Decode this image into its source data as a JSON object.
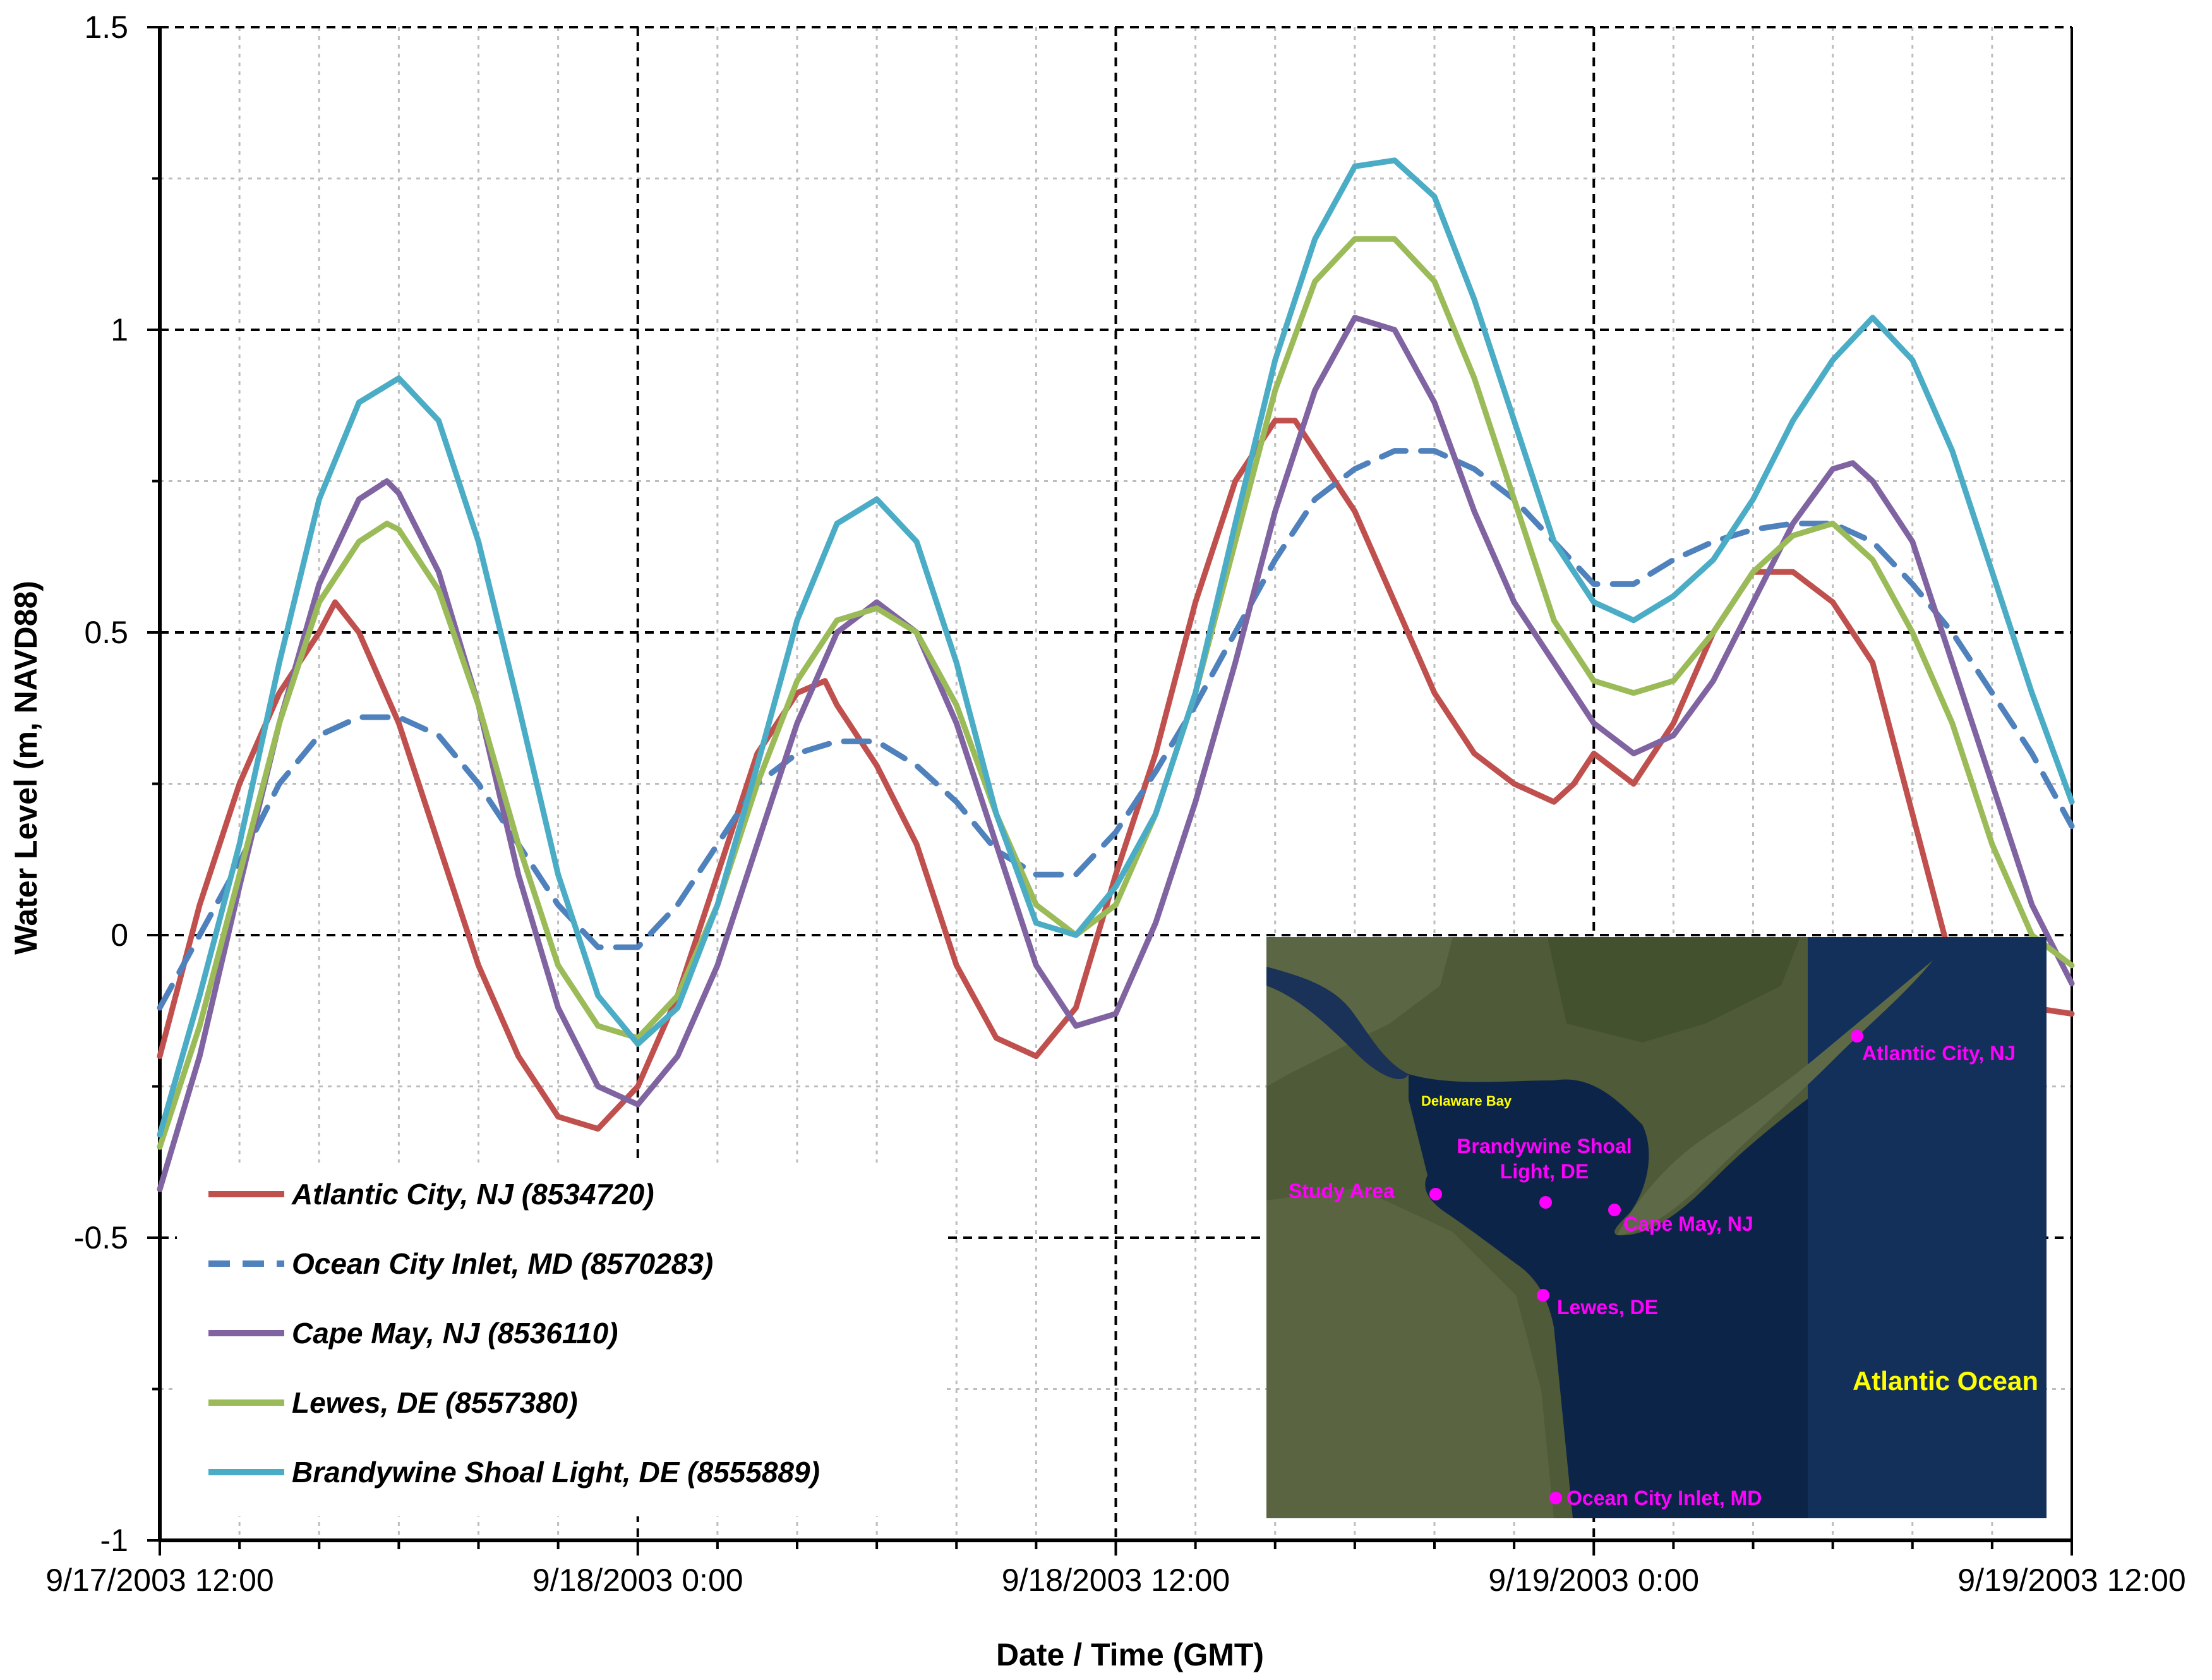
{
  "chart_data": {
    "type": "line",
    "title": "",
    "xlabel": "Date / Time (GMT)",
    "ylabel": "Water Level (m, NAVD88)",
    "x_unit": "hours since 9/17/2003 12:00",
    "xlim": [
      0,
      48
    ],
    "ylim": [
      -1,
      1.5
    ],
    "x_ticks": [
      0,
      12,
      24,
      36,
      48
    ],
    "x_tick_labels": [
      "9/17/2003 12:00",
      "9/18/2003 0:00",
      "9/18/2003 12:00",
      "9/19/2003 0:00",
      "9/19/2003 12:00"
    ],
    "y_ticks": [
      -1,
      -0.5,
      0,
      0.5,
      1,
      1.5
    ],
    "y_tick_labels": [
      "-1",
      "-0.5",
      "0",
      "0.5",
      "1",
      "1.5"
    ],
    "grid": true,
    "legend_position": "bottom-left",
    "series": [
      {
        "name": "Atlantic City, NJ (8534720)",
        "color": "#C0504D",
        "style": "solid",
        "x": [
          0,
          1,
          2,
          3,
          4,
          4.4,
          5,
          6,
          7,
          8,
          9,
          10,
          11,
          12,
          13,
          14,
          15,
          16,
          16.7,
          17,
          18,
          19,
          20,
          21,
          22,
          23,
          24,
          25,
          26,
          27,
          28,
          28.5,
          29,
          30,
          31,
          32,
          33,
          34,
          35,
          35.5,
          36,
          37,
          38,
          39,
          40,
          41,
          42,
          43,
          44,
          44.8,
          45,
          46,
          47,
          48
        ],
        "y": [
          -0.2,
          0.05,
          0.25,
          0.4,
          0.5,
          0.55,
          0.5,
          0.35,
          0.15,
          -0.05,
          -0.2,
          -0.3,
          -0.32,
          -0.25,
          -0.1,
          0.1,
          0.3,
          0.4,
          0.42,
          0.38,
          0.28,
          0.15,
          -0.05,
          -0.17,
          -0.2,
          -0.12,
          0.1,
          0.3,
          0.55,
          0.75,
          0.85,
          0.85,
          0.8,
          0.7,
          0.55,
          0.4,
          0.3,
          0.25,
          0.22,
          0.25,
          0.3,
          0.25,
          0.35,
          0.5,
          0.6,
          0.6,
          0.55,
          0.45,
          0.2,
          0,
          -0.05,
          -0.1,
          -0.12,
          -0.13
        ]
      },
      {
        "name": "Ocean City Inlet, MD (8570283)",
        "color": "#4F81BD",
        "style": "dashed",
        "x": [
          0,
          1,
          2,
          3,
          4,
          5,
          6,
          7,
          8,
          9,
          10,
          11,
          12,
          13,
          14,
          15,
          16,
          17,
          18,
          19,
          20,
          21,
          22,
          23,
          24,
          25,
          26,
          27,
          28,
          29,
          30,
          31,
          32,
          33,
          34,
          35,
          36,
          37,
          38,
          39,
          40,
          41,
          42,
          43,
          44,
          45,
          46,
          47,
          48
        ],
        "y": [
          -0.12,
          0,
          0.12,
          0.25,
          0.33,
          0.36,
          0.36,
          0.33,
          0.25,
          0.15,
          0.05,
          -0.02,
          -0.02,
          0.05,
          0.15,
          0.25,
          0.3,
          0.32,
          0.32,
          0.28,
          0.22,
          0.14,
          0.1,
          0.1,
          0.17,
          0.27,
          0.38,
          0.5,
          0.62,
          0.72,
          0.77,
          0.8,
          0.8,
          0.77,
          0.72,
          0.65,
          0.58,
          0.58,
          0.62,
          0.65,
          0.67,
          0.68,
          0.68,
          0.65,
          0.58,
          0.5,
          0.4,
          0.3,
          0.18
        ]
      },
      {
        "name": "Cape May, NJ (8536110)",
        "color": "#8064A2",
        "style": "solid",
        "x": [
          0,
          1,
          2,
          3,
          4,
          5,
          5.7,
          6,
          7,
          8,
          9,
          10,
          11,
          12,
          13,
          14,
          15,
          16,
          17,
          18,
          19,
          20,
          21,
          22,
          23,
          24,
          25,
          26,
          27,
          28,
          29,
          30,
          31,
          32,
          33,
          34,
          35,
          36,
          37,
          38,
          39,
          40,
          41,
          42,
          42.5,
          43,
          44,
          45,
          46,
          47,
          48
        ],
        "y": [
          -0.42,
          -0.2,
          0.08,
          0.35,
          0.58,
          0.72,
          0.75,
          0.73,
          0.6,
          0.38,
          0.1,
          -0.12,
          -0.25,
          -0.28,
          -0.2,
          -0.05,
          0.15,
          0.35,
          0.5,
          0.55,
          0.5,
          0.35,
          0.15,
          -0.05,
          -0.15,
          -0.13,
          0.02,
          0.22,
          0.45,
          0.7,
          0.9,
          1.02,
          1,
          0.88,
          0.7,
          0.55,
          0.45,
          0.35,
          0.3,
          0.33,
          0.42,
          0.55,
          0.68,
          0.77,
          0.78,
          0.75,
          0.65,
          0.45,
          0.25,
          0.05,
          -0.08
        ]
      },
      {
        "name": "Lewes, DE (8557380)",
        "color": "#9BBB59",
        "style": "solid",
        "x": [
          0,
          1,
          2,
          3,
          4,
          5,
          5.7,
          6,
          7,
          8,
          9,
          10,
          11,
          12,
          13,
          14,
          15,
          16,
          17,
          18,
          19,
          20,
          21,
          22,
          23,
          24,
          25,
          26,
          27,
          28,
          29,
          30,
          31,
          32,
          33,
          34,
          35,
          36,
          37,
          38,
          39,
          40,
          41,
          42,
          43,
          44,
          45,
          46,
          47,
          48
        ],
        "y": [
          -0.35,
          -0.15,
          0.1,
          0.35,
          0.55,
          0.65,
          0.68,
          0.67,
          0.57,
          0.38,
          0.15,
          -0.05,
          -0.15,
          -0.17,
          -0.1,
          0.05,
          0.25,
          0.42,
          0.52,
          0.54,
          0.5,
          0.38,
          0.2,
          0.05,
          0,
          0.05,
          0.2,
          0.4,
          0.65,
          0.9,
          1.08,
          1.15,
          1.15,
          1.08,
          0.92,
          0.72,
          0.52,
          0.42,
          0.4,
          0.42,
          0.5,
          0.6,
          0.66,
          0.68,
          0.62,
          0.5,
          0.35,
          0.15,
          0,
          -0.05
        ]
      },
      {
        "name": "Brandywine Shoal Light, DE (8555889)",
        "color": "#4BACC6",
        "style": "solid",
        "x": [
          0,
          1,
          2,
          3,
          4,
          5,
          6,
          7,
          8,
          9,
          10,
          11,
          12,
          13,
          14,
          15,
          16,
          17,
          18,
          19,
          20,
          21,
          22,
          23,
          24,
          25,
          26,
          27,
          28,
          29,
          30,
          31,
          32,
          33,
          34,
          35,
          36,
          37,
          38,
          39,
          40,
          41,
          42,
          43,
          44,
          45,
          46,
          47,
          48
        ],
        "y": [
          -0.33,
          -0.1,
          0.15,
          0.45,
          0.72,
          0.88,
          0.92,
          0.85,
          0.65,
          0.38,
          0.1,
          -0.1,
          -0.18,
          -0.12,
          0.05,
          0.28,
          0.52,
          0.68,
          0.72,
          0.65,
          0.45,
          0.2,
          0.02,
          0,
          0.08,
          0.2,
          0.4,
          0.68,
          0.95,
          1.15,
          1.27,
          1.28,
          1.22,
          1.05,
          0.85,
          0.65,
          0.55,
          0.52,
          0.56,
          0.62,
          0.72,
          0.85,
          0.95,
          1.02,
          0.95,
          0.8,
          0.6,
          0.4,
          0.22
        ]
      }
    ]
  },
  "map": {
    "labels": {
      "delaware_bay": "Delaware Bay",
      "brandywine": "Brandywine Shoal",
      "brandywine2": "Light, DE",
      "study_area": "Study Area",
      "cape_may": "Cape May, NJ",
      "lewes": "Lewes, DE",
      "ocean_city": "Ocean City Inlet, MD",
      "atlantic_city": "Atlantic City, NJ",
      "atlantic_ocean": "Atlantic Ocean"
    },
    "colors": {
      "label_magenta": "#FF00FF",
      "label_yellow": "#FFFF00",
      "water_bay": "#0D2449",
      "water_ocean": "#12305A",
      "land": "#4E5A38"
    }
  }
}
